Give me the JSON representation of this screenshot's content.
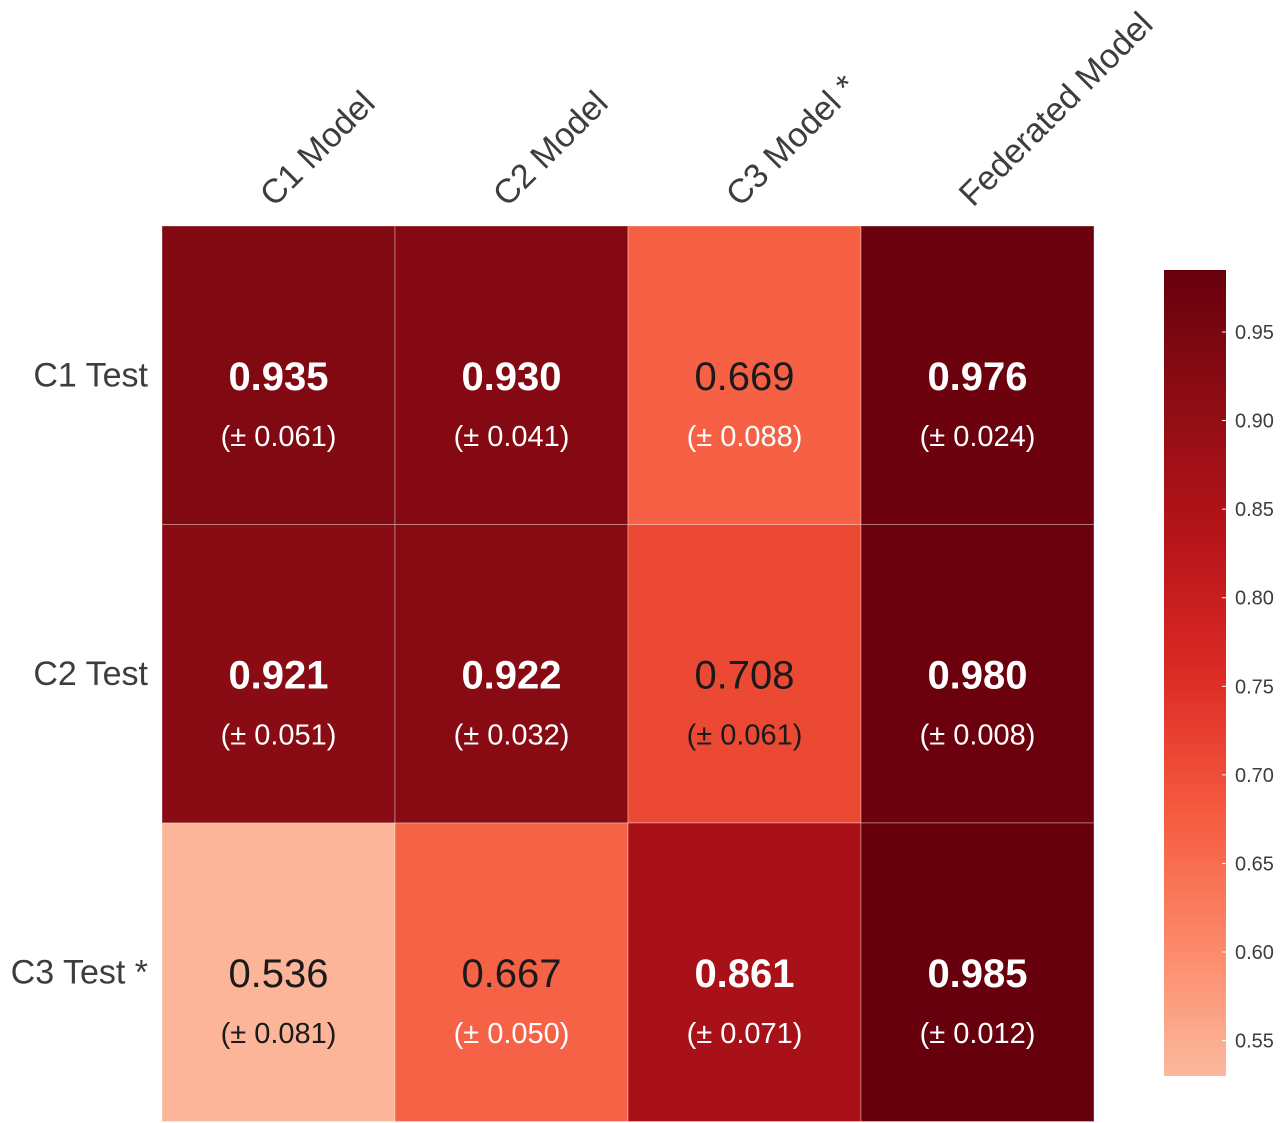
{
  "chart_data": {
    "type": "heatmap",
    "columns": [
      "C1 Model",
      "C2 Model",
      "C3 Model *",
      "Federated Model"
    ],
    "rows": [
      "C1 Test",
      "C2 Test",
      "C3 Test *"
    ],
    "values": [
      [
        0.935,
        0.93,
        0.669,
        0.976
      ],
      [
        0.921,
        0.922,
        0.708,
        0.98
      ],
      [
        0.536,
        0.667,
        0.861,
        0.985
      ]
    ],
    "value_labels": [
      [
        "0.935",
        "0.930",
        "0.669",
        "0.976"
      ],
      [
        "0.921",
        "0.922",
        "0.708",
        "0.980"
      ],
      [
        "0.536",
        "0.667",
        "0.861",
        "0.985"
      ]
    ],
    "errors": [
      [
        "(± 0.061)",
        "(± 0.041)",
        "(± 0.088)",
        "(± 0.024)"
      ],
      [
        "(± 0.051)",
        "(± 0.032)",
        "(± 0.061)",
        "(± 0.008)"
      ],
      [
        "(± 0.081)",
        "(± 0.050)",
        "(± 0.071)",
        "(± 0.012)"
      ]
    ],
    "colorbar": {
      "range": [
        0.53,
        0.985
      ],
      "ticks": [
        0.55,
        0.6,
        0.65,
        0.7,
        0.75,
        0.8,
        0.85,
        0.9,
        0.95
      ],
      "tick_labels": [
        "0.55",
        "0.60",
        "0.65",
        "0.70",
        "0.75",
        "0.80",
        "0.85",
        "0.90",
        "0.95"
      ],
      "colormap": [
        "#fcb99d",
        "#fc8767",
        "#f5593e",
        "#dc2a25",
        "#b71419",
        "#8f0d14",
        "#67000d"
      ],
      "position": "right"
    },
    "grid": true
  }
}
